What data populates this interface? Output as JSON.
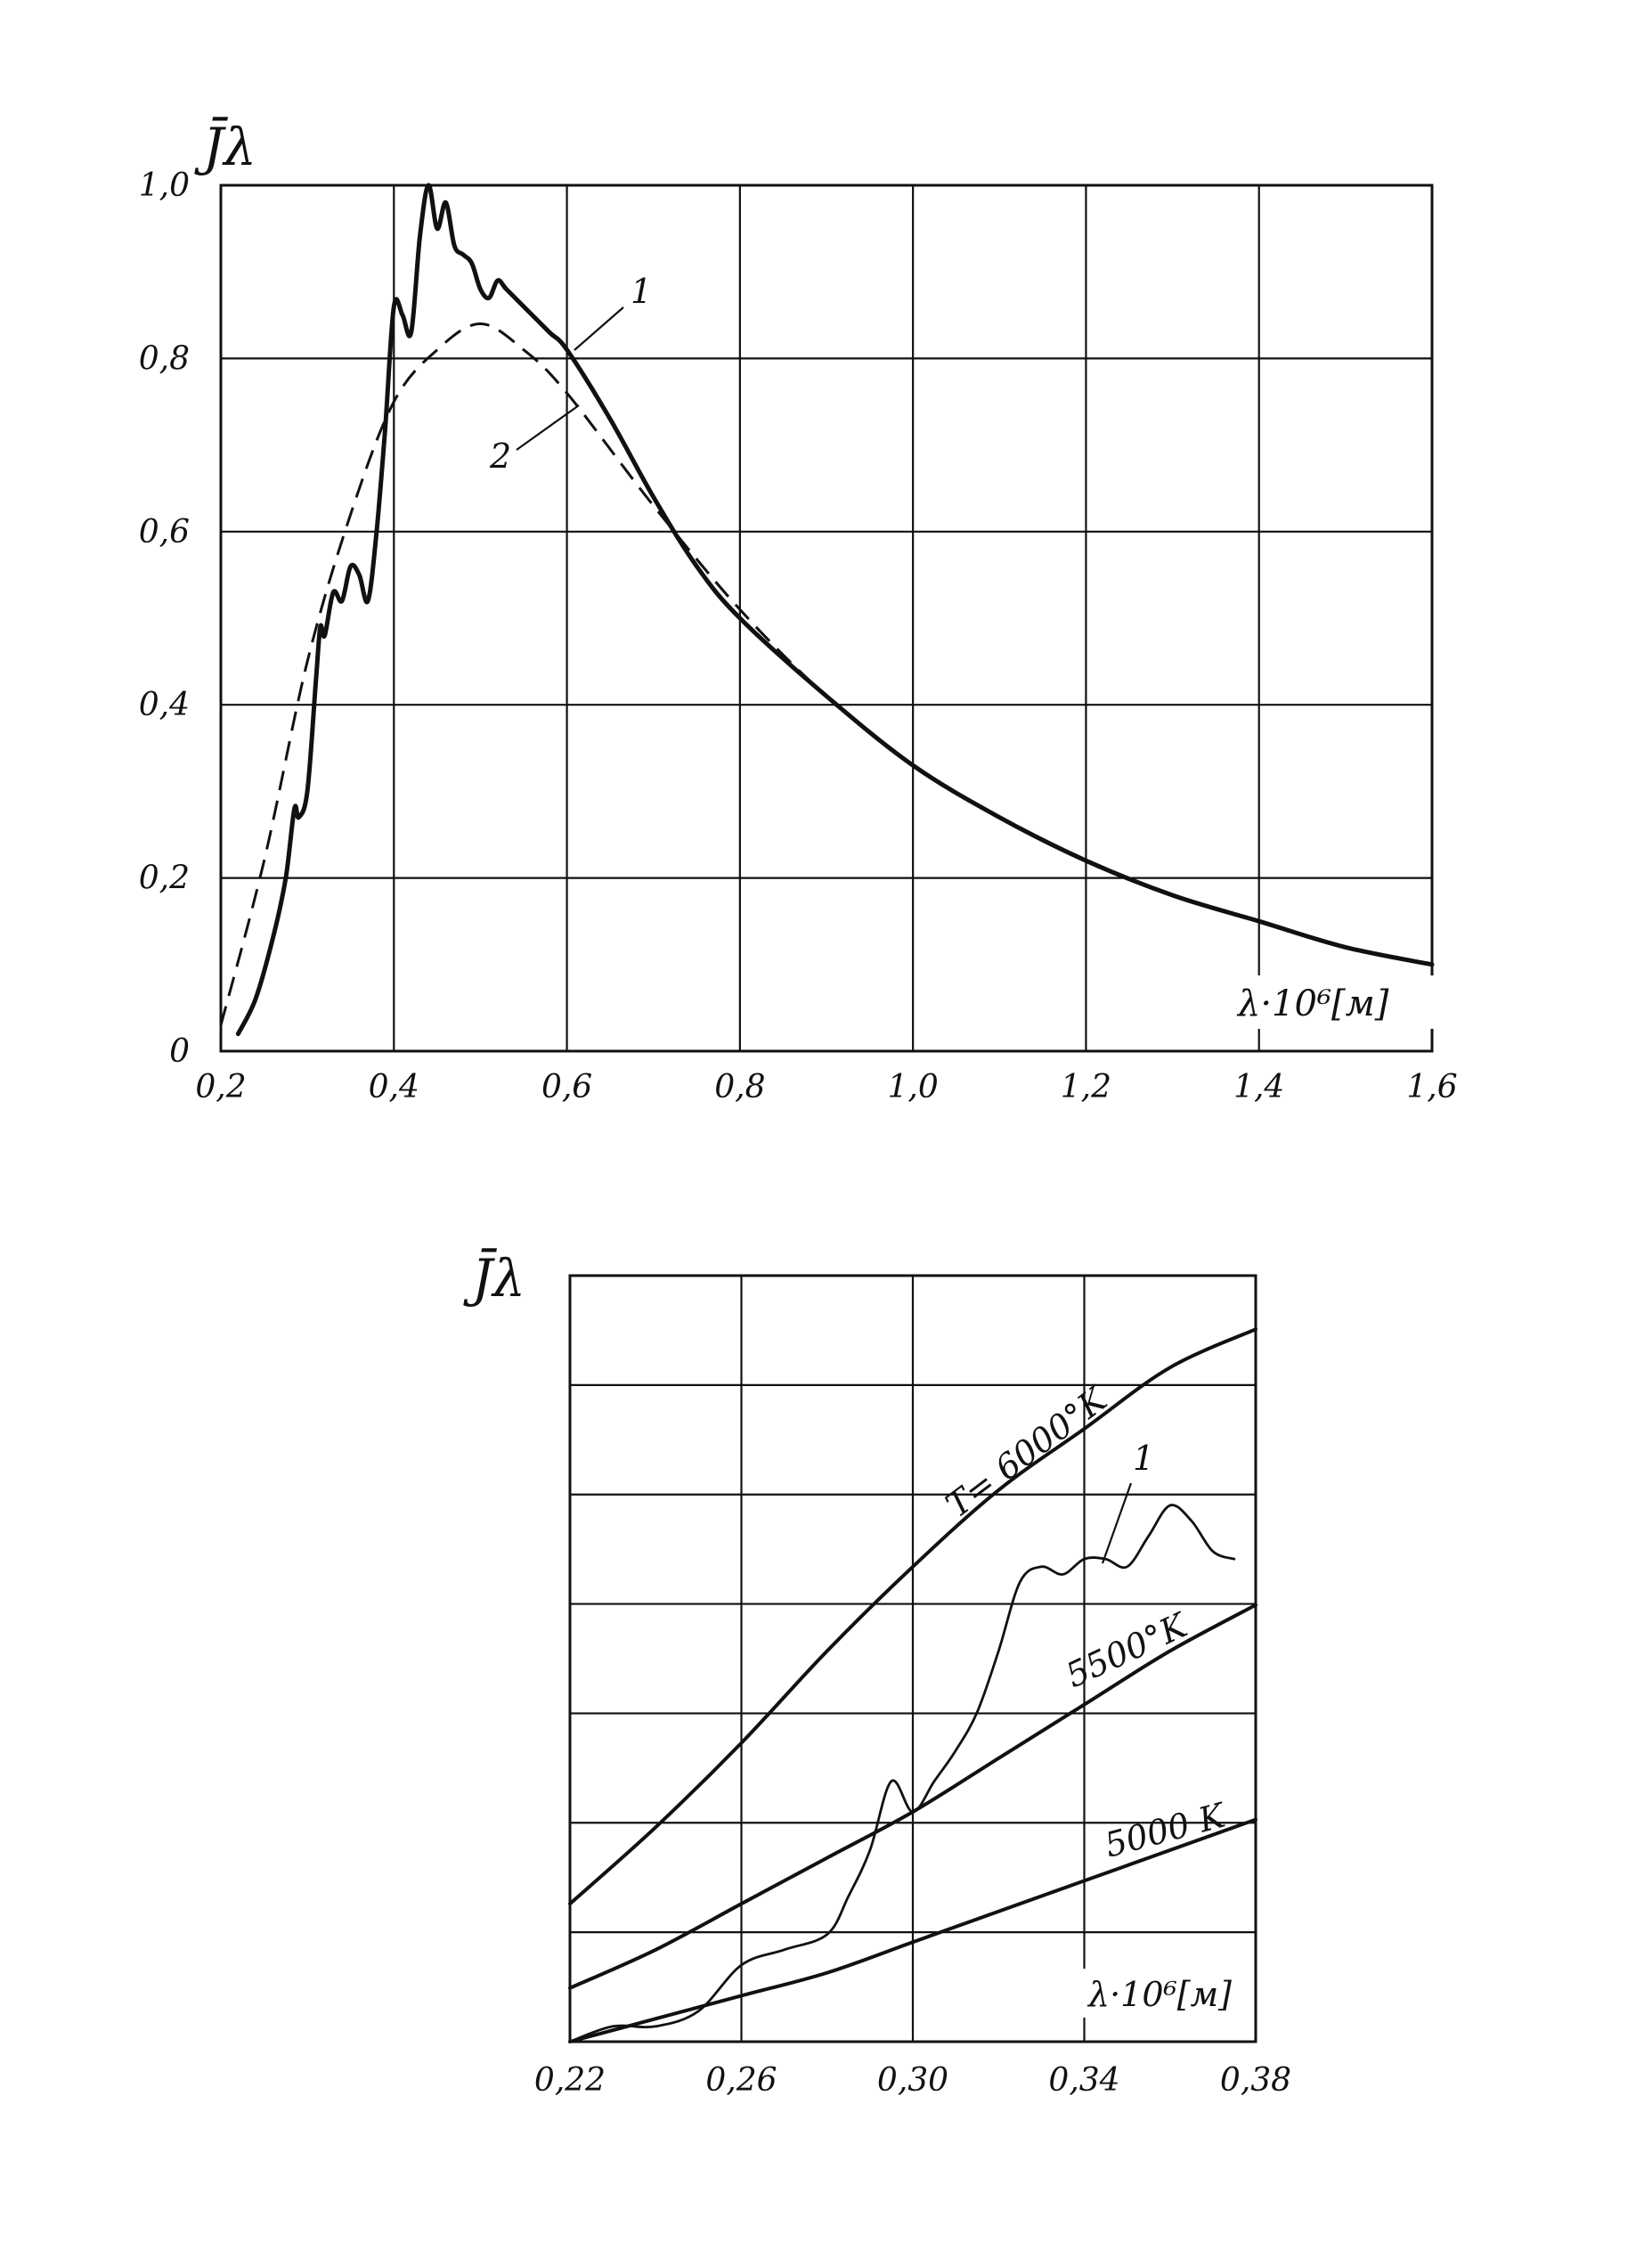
{
  "chart_data": [
    {
      "type": "line",
      "ylabel": "J̄λ",
      "xlabel": "λ·10⁶[м]",
      "xlim": [
        0.2,
        1.6
      ],
      "ylim": [
        0,
        1.0
      ],
      "x_ticks": [
        "0,2",
        "0,4",
        "0,6",
        "0,8",
        "1,0",
        "1,2",
        "1,4",
        "1,6"
      ],
      "y_ticks": [
        "0",
        "0,2",
        "0,4",
        "0,6",
        "0,8",
        "1,0"
      ],
      "grid": true,
      "annotations": [
        "1",
        "2"
      ],
      "series": [
        {
          "name": "1",
          "style": "solid",
          "x": [
            0.22,
            0.24,
            0.26,
            0.275,
            0.285,
            0.29,
            0.3,
            0.31,
            0.315,
            0.32,
            0.33,
            0.34,
            0.35,
            0.36,
            0.37,
            0.38,
            0.39,
            0.4,
            0.41,
            0.42,
            0.43,
            0.44,
            0.45,
            0.46,
            0.47,
            0.48,
            0.49,
            0.5,
            0.51,
            0.52,
            0.53,
            0.55,
            0.58,
            0.6,
            0.65,
            0.7,
            0.75,
            0.8,
            0.9,
            1.0,
            1.1,
            1.2,
            1.3,
            1.4,
            1.5,
            1.6
          ],
          "y": [
            0.02,
            0.06,
            0.13,
            0.2,
            0.28,
            0.27,
            0.3,
            0.43,
            0.49,
            0.48,
            0.53,
            0.52,
            0.56,
            0.55,
            0.52,
            0.6,
            0.72,
            0.86,
            0.85,
            0.83,
            0.94,
            1.0,
            0.95,
            0.98,
            0.93,
            0.92,
            0.91,
            0.88,
            0.87,
            0.89,
            0.88,
            0.86,
            0.83,
            0.81,
            0.73,
            0.64,
            0.56,
            0.5,
            0.41,
            0.33,
            0.27,
            0.22,
            0.18,
            0.15,
            0.12,
            0.1
          ]
        },
        {
          "name": "2",
          "style": "dashed",
          "x": [
            0.2,
            0.25,
            0.3,
            0.35,
            0.4,
            0.45,
            0.5,
            0.55,
            0.6,
            0.7,
            0.8,
            0.9,
            1.0,
            1.1,
            1.2,
            1.3,
            1.4,
            1.5,
            1.6
          ],
          "y": [
            0.03,
            0.22,
            0.45,
            0.62,
            0.75,
            0.81,
            0.84,
            0.81,
            0.76,
            0.63,
            0.51,
            0.41,
            0.33,
            0.27,
            0.22,
            0.18,
            0.15,
            0.12,
            0.1
          ]
        }
      ]
    },
    {
      "type": "line",
      "ylabel": "J̄λ",
      "xlabel": "λ·10⁶[м]",
      "xlim": [
        0.22,
        0.38
      ],
      "ylim": [
        0,
        1
      ],
      "x_ticks": [
        "0,22",
        "0,26",
        "0,30",
        "0,34",
        "0,38"
      ],
      "grid": true,
      "annotations": [
        "T= 6000°K",
        "5500°K",
        "5000 K",
        "1"
      ],
      "series": [
        {
          "name": "T= 6000°K",
          "style": "solid",
          "x": [
            0.22,
            0.24,
            0.26,
            0.28,
            0.3,
            0.32,
            0.34,
            0.36,
            0.38
          ],
          "y": [
            0.18,
            0.28,
            0.39,
            0.51,
            0.62,
            0.72,
            0.8,
            0.88,
            0.93
          ]
        },
        {
          "name": "5500°K",
          "style": "solid",
          "x": [
            0.22,
            0.24,
            0.26,
            0.28,
            0.3,
            0.32,
            0.34,
            0.36,
            0.38
          ],
          "y": [
            0.07,
            0.12,
            0.18,
            0.24,
            0.3,
            0.37,
            0.44,
            0.51,
            0.57
          ]
        },
        {
          "name": "5000 K",
          "style": "solid",
          "x": [
            0.22,
            0.24,
            0.26,
            0.28,
            0.3,
            0.32,
            0.34,
            0.36,
            0.38
          ],
          "y": [
            0.0,
            0.03,
            0.06,
            0.09,
            0.13,
            0.17,
            0.21,
            0.25,
            0.29
          ]
        },
        {
          "name": "1",
          "style": "solid",
          "x": [
            0.22,
            0.23,
            0.24,
            0.25,
            0.26,
            0.27,
            0.28,
            0.285,
            0.29,
            0.295,
            0.3,
            0.305,
            0.31,
            0.315,
            0.32,
            0.325,
            0.33,
            0.335,
            0.34,
            0.345,
            0.35,
            0.355,
            0.36,
            0.365,
            0.37,
            0.375
          ],
          "y": [
            0.0,
            0.02,
            0.02,
            0.04,
            0.1,
            0.12,
            0.14,
            0.19,
            0.25,
            0.34,
            0.3,
            0.34,
            0.38,
            0.43,
            0.51,
            0.6,
            0.62,
            0.61,
            0.63,
            0.63,
            0.62,
            0.66,
            0.7,
            0.68,
            0.64,
            0.63
          ]
        }
      ]
    }
  ]
}
